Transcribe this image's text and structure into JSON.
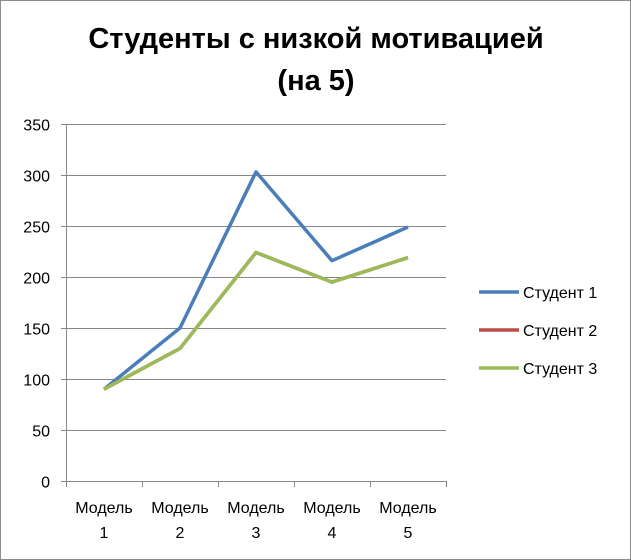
{
  "chart_data": {
    "type": "line",
    "title_lines": [
      "Студенты с низкой мотивацией",
      "(на 5)"
    ],
    "categories": [
      [
        "Модель",
        "1"
      ],
      [
        "Модель",
        "2"
      ],
      [
        "Модель",
        "3"
      ],
      [
        "Модель",
        "4"
      ],
      [
        "Модель",
        "5"
      ]
    ],
    "series": [
      {
        "name": "Студент 1",
        "color": "#4a7ebb",
        "values": [
          90,
          150,
          303,
          216,
          249
        ]
      },
      {
        "name": "Студент 2",
        "color": "#be4b48",
        "values": [
          90,
          130,
          224,
          195,
          219
        ]
      },
      {
        "name": "Студент 3",
        "color": "#9bbb59",
        "values": [
          90,
          130,
          224,
          195,
          219
        ]
      }
    ],
    "ylim": [
      0,
      350
    ],
    "yticks": [
      0,
      50,
      100,
      150,
      200,
      250,
      300,
      350
    ],
    "grid": true,
    "legend_position": "right"
  }
}
